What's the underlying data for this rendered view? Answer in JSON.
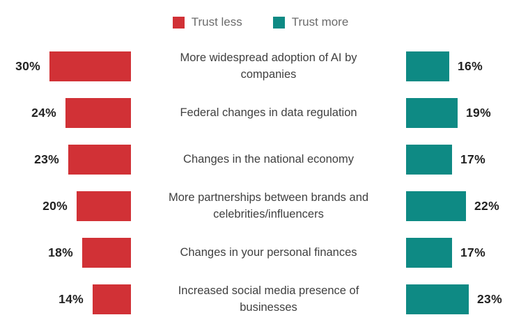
{
  "chart_data": {
    "type": "bar",
    "variant": "diverging-horizontal",
    "title": "",
    "unit": "%",
    "legend": [
      {
        "label": "Trust less",
        "color": "#d13136"
      },
      {
        "label": "Trust more",
        "color": "#0e8a84"
      }
    ],
    "legend_position": "top-center",
    "grid": false,
    "axis_hidden": true,
    "xlim_left": [
      0,
      32
    ],
    "xlim_right": [
      0,
      32
    ],
    "categories": [
      "More widespread adoption of AI by\ncompanies",
      "Federal changes in data regulation",
      "Changes in the national economy",
      "More partnerships between brands and\ncelebrities/influencers",
      "Changes in your personal finances",
      "Increased social media presence of\nbusinesses"
    ],
    "series": [
      {
        "name": "Trust less",
        "side": "left",
        "color": "#d13136",
        "values": [
          30,
          24,
          23,
          20,
          18,
          14
        ],
        "labels": [
          "30%",
          "24%",
          "23%",
          "20%",
          "18%",
          "14%"
        ]
      },
      {
        "name": "Trust more",
        "side": "right",
        "color": "#0e8a84",
        "values": [
          16,
          19,
          17,
          22,
          17,
          23
        ],
        "labels": [
          "16%",
          "19%",
          "17%",
          "22%",
          "17%",
          "23%"
        ]
      }
    ]
  },
  "colors": {
    "trust_less": "#d13136",
    "trust_more": "#0e8a84",
    "value_text": "#222222",
    "category_text": "#3f3f3f",
    "legend_text": "#6b6b6b",
    "background": "#ffffff"
  }
}
